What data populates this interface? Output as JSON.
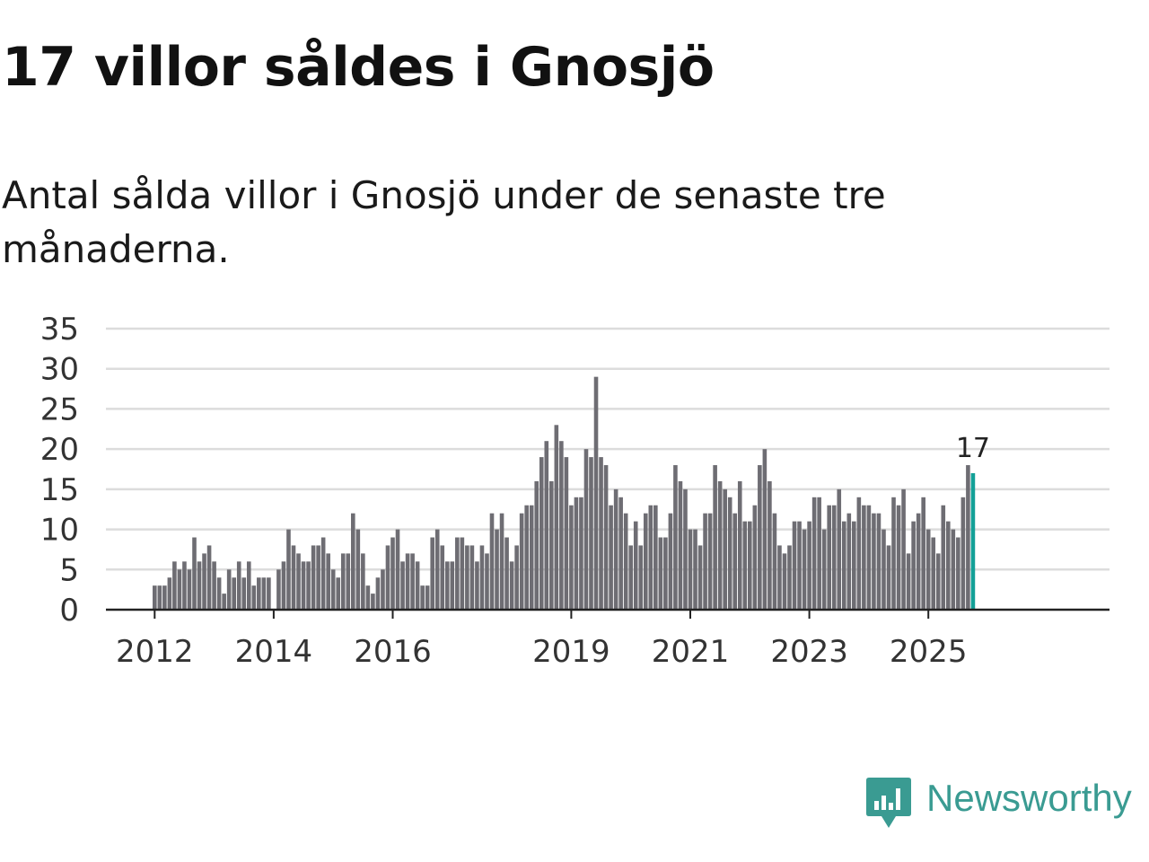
{
  "title": "17 villor såldes i Gnosjö",
  "subtitle": "Antal sålda villor i Gnosjö under de senaste tre månaderna.",
  "colors": {
    "bar": "#6e6d73",
    "highlight": "#13a097",
    "grid": "#dcdcdc",
    "axis": "#222222",
    "brand": "#3a9b92"
  },
  "chart_data": {
    "type": "bar",
    "title": "17 villor såldes i Gnosjö",
    "subtitle": "Antal sålda villor i Gnosjö under de senaste tre månaderna.",
    "xlabel": "",
    "ylabel": "",
    "ylim": [
      0,
      35
    ],
    "y_ticks": [
      0,
      5,
      10,
      15,
      20,
      25,
      30,
      35
    ],
    "x_tick_labels": [
      "2012",
      "2014",
      "2016",
      "2019",
      "2021",
      "2023",
      "2025"
    ],
    "start": "2012-01",
    "frequency": "monthly",
    "grid": true,
    "values": [
      3,
      3,
      3,
      4,
      6,
      5,
      6,
      5,
      9,
      6,
      7,
      8,
      6,
      4,
      2,
      5,
      4,
      6,
      4,
      6,
      3,
      4,
      4,
      4,
      0,
      5,
      6,
      10,
      8,
      7,
      6,
      6,
      8,
      8,
      9,
      7,
      5,
      4,
      7,
      7,
      12,
      10,
      7,
      3,
      2,
      4,
      5,
      8,
      9,
      10,
      6,
      7,
      7,
      6,
      3,
      3,
      9,
      10,
      8,
      6,
      6,
      9,
      9,
      8,
      8,
      6,
      8,
      7,
      12,
      10,
      12,
      9,
      6,
      8,
      12,
      13,
      13,
      16,
      19,
      21,
      16,
      23,
      21,
      19,
      13,
      14,
      14,
      20,
      19,
      29,
      19,
      18,
      13,
      15,
      14,
      12,
      8,
      11,
      8,
      12,
      13,
      13,
      9,
      9,
      12,
      18,
      16,
      15,
      10,
      10,
      8,
      12,
      12,
      18,
      16,
      15,
      14,
      12,
      16,
      11,
      11,
      13,
      18,
      20,
      16,
      12,
      8,
      7,
      8,
      11,
      11,
      10,
      11,
      14,
      14,
      10,
      13,
      13,
      15,
      11,
      12,
      11,
      14,
      13,
      13,
      12,
      12,
      10,
      8,
      14,
      13,
      15,
      7,
      11,
      12,
      14,
      10,
      9,
      7,
      13,
      11,
      10,
      9,
      14,
      18,
      17
    ],
    "highlight_last": true,
    "annotation": {
      "label": "17",
      "value": 17
    }
  },
  "logo": {
    "text": "Newsworthy",
    "icon": "newsworthy-logo-icon"
  }
}
